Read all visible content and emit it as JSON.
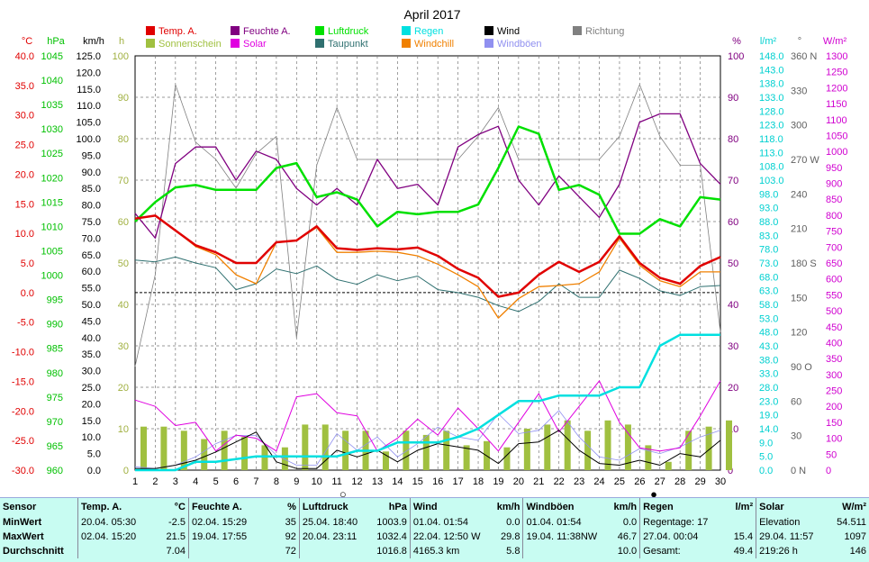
{
  "chart_data": {
    "type": "line",
    "title": "April 2017",
    "x": [
      1,
      2,
      3,
      4,
      5,
      6,
      7,
      8,
      9,
      10,
      11,
      12,
      13,
      14,
      15,
      16,
      17,
      18,
      19,
      20,
      21,
      22,
      23,
      24,
      25,
      26,
      27,
      28,
      29,
      30
    ],
    "axes": {
      "temp_c": {
        "label": "°C",
        "ylim": [
          -30,
          40
        ],
        "ticks": [
          "40.0",
          "35.0",
          "30.0",
          "25.0",
          "20.0",
          "15.0",
          "10.0",
          "5.0",
          "0.0",
          "-5.0",
          "-10.0",
          "-15.0",
          "-20.0",
          "-25.0",
          "-30.0"
        ]
      },
      "pressure_hpa": {
        "label": "hPa",
        "ylim": [
          960,
          1045
        ],
        "ticks": [
          "1045",
          "1040",
          "1035",
          "1030",
          "1025",
          "1020",
          "1015",
          "1010",
          "1005",
          "1000",
          "995",
          "990",
          "985",
          "980",
          "975",
          "970",
          "965",
          "960"
        ]
      },
      "wind_kmh": {
        "label": "km/h",
        "ylim": [
          0,
          125
        ],
        "ticks": [
          "125.0",
          "120.0",
          "115.0",
          "110.0",
          "105.0",
          "100.0",
          "95.0",
          "90.0",
          "85.0",
          "80.0",
          "75.0",
          "70.0",
          "65.0",
          "60.0",
          "55.0",
          "50.0",
          "45.0",
          "40.0",
          "35.0",
          "30.0",
          "25.0",
          "20.0",
          "15.0",
          "10.0",
          "5.0",
          "0.0"
        ]
      },
      "sun_h": {
        "label": "h",
        "ylim": [
          0,
          100
        ],
        "ticks": [
          "100",
          "90",
          "80",
          "70",
          "60",
          "50",
          "40",
          "30",
          "20",
          "10",
          "0"
        ]
      },
      "humidity_pct": {
        "label": "%",
        "ylim": [
          0,
          100
        ],
        "ticks": [
          "100",
          "90",
          "80",
          "70",
          "60",
          "50",
          "40",
          "30",
          "20",
          "10",
          "0"
        ]
      },
      "rain_lm2": {
        "label": "l/m²",
        "ylim": [
          0,
          150
        ],
        "ticks": [
          "148.0",
          "143.0",
          "138.0",
          "133.0",
          "128.0",
          "123.0",
          "118.0",
          "113.0",
          "108.0",
          "103.0",
          "98.0",
          "93.0",
          "88.0",
          "83.0",
          "78.0",
          "73.0",
          "68.0",
          "63.0",
          "58.0",
          "53.0",
          "48.0",
          "43.0",
          "38.0",
          "33.0",
          "28.0",
          "23.0",
          "19.0",
          "14.0",
          "9.0",
          "5.0",
          "0.0"
        ]
      },
      "direction_deg": {
        "label": "°",
        "ylim": [
          0,
          360
        ],
        "ticks": [
          "360 N",
          "330",
          "300",
          "270 W",
          "240",
          "210",
          "180 S",
          "150",
          "120",
          "90 O",
          "60",
          "30",
          "0 N"
        ]
      },
      "solar_wm2": {
        "label": "W/m²",
        "ylim": [
          0,
          1300
        ],
        "ticks": [
          "1300",
          "1250",
          "1200",
          "1150",
          "1100",
          "1050",
          "1000",
          "950",
          "900",
          "850",
          "800",
          "750",
          "700",
          "650",
          "600",
          "550",
          "500",
          "450",
          "400",
          "350",
          "300",
          "250",
          "200",
          "150",
          "100",
          "50",
          "0"
        ]
      }
    },
    "legend": [
      "Temp. A.",
      "Feuchte A.",
      "Luftdruck",
      "Regen",
      "Wind",
      "Richtung",
      "Sonnenschein",
      "Solar",
      "Taupunkt",
      "Windchill",
      "Windböen"
    ],
    "series": [
      {
        "name": "Temp. A.",
        "axis": "temp_c",
        "color": "#e00000",
        "values": [
          12.5,
          13,
          10.5,
          8,
          6.8,
          5,
          5,
          8.5,
          8.8,
          11.2,
          7.5,
          7.2,
          7.5,
          7.3,
          7.6,
          6.2,
          4,
          2.5,
          -0.7,
          0,
          3,
          5.2,
          3.5,
          5.2,
          9.5,
          5,
          2.5,
          1.5,
          4.5,
          6
        ]
      },
      {
        "name": "Feuchte A.",
        "axis": "humidity_pct",
        "color": "#800080",
        "values": [
          62,
          56,
          74,
          78,
          78,
          70,
          77,
          75,
          68,
          64,
          68,
          64,
          75,
          68,
          69,
          64,
          78,
          81,
          83,
          70,
          64,
          71,
          66,
          61,
          69,
          84,
          86,
          86,
          74,
          69
        ]
      },
      {
        "name": "Luftdruck",
        "axis": "pressure_hpa",
        "color": "#00e000",
        "values": [
          1011,
          1015,
          1018,
          1018.5,
          1017.5,
          1017.5,
          1017.5,
          1022,
          1023,
          1016,
          1017,
          1015.5,
          1010,
          1013,
          1012.5,
          1013,
          1013,
          1014.5,
          1022,
          1030.5,
          1029,
          1017.5,
          1018.5,
          1016.5,
          1008.5,
          1008.5,
          1011.5,
          1010,
          1016,
          1015.5
        ]
      },
      {
        "name": "Taupunkt",
        "axis": "temp_c",
        "color": "#2f7070",
        "values": [
          5.5,
          5.2,
          6,
          5,
          4.2,
          0.5,
          1.5,
          4,
          3.2,
          4.5,
          2.2,
          1.4,
          3,
          2,
          2.8,
          0.5,
          0,
          -0.8,
          -2.2,
          -3.2,
          -1.5,
          1.5,
          -0.8,
          -0.8,
          3.8,
          2.4,
          0.3,
          -0.5,
          1,
          1.2
        ]
      },
      {
        "name": "Windchill",
        "axis": "temp_c",
        "color": "#f08000",
        "values": [
          12.5,
          13,
          10.5,
          7.8,
          6.4,
          3,
          1.5,
          8.5,
          8.8,
          11,
          6.8,
          6.8,
          7,
          6.8,
          6.2,
          4.8,
          3,
          1,
          -4.3,
          -1,
          1,
          1.2,
          1.5,
          3.5,
          9.2,
          4.6,
          2,
          1,
          3.5,
          3.5
        ]
      },
      {
        "name": "Regen",
        "axis": "rain_lm2",
        "color": "#00e0e0",
        "values": [
          0,
          0,
          0,
          3,
          3,
          4,
          5,
          5,
          5,
          5,
          5,
          7,
          7,
          10,
          10,
          10,
          12,
          15,
          20,
          25,
          25,
          27,
          27,
          27,
          30,
          30,
          45,
          49,
          49,
          49
        ]
      },
      {
        "name": "Wind",
        "axis": "wind_kmh",
        "color": "#000000",
        "values": [
          0.5,
          0.5,
          1.5,
          3,
          5.5,
          8.5,
          11.5,
          2.5,
          0.5,
          0.5,
          6,
          4,
          6,
          2.5,
          6,
          8,
          7,
          6,
          2,
          8,
          8.5,
          12,
          6,
          2,
          1.5,
          3,
          1.5,
          5,
          4,
          9
        ]
      },
      {
        "name": "Windböen",
        "axis": "wind_kmh",
        "color": "#9090f0",
        "values": [
          1,
          0.5,
          1.5,
          4,
          8,
          10.5,
          10.5,
          4.5,
          1.5,
          1.5,
          11,
          6,
          10,
          4,
          8,
          13,
          10,
          9,
          17,
          11,
          12,
          18,
          10,
          4,
          3,
          6.5,
          5,
          7,
          10,
          12
        ]
      },
      {
        "name": "Richtung",
        "axis": "direction_deg",
        "color": "#808080",
        "values": [
          90,
          170,
          335,
          285,
          270,
          245,
          275,
          290,
          115,
          265,
          315,
          270,
          270,
          270,
          270,
          270,
          270,
          290,
          315,
          270,
          270,
          270,
          270,
          270,
          290,
          335,
          290,
          265,
          265,
          120
        ]
      },
      {
        "name": "Solar",
        "axis": "solar_wm2",
        "color": "#e000e0",
        "values": [
          220,
          200,
          140,
          150,
          60,
          110,
          100,
          60,
          230,
          240,
          180,
          170,
          60,
          100,
          160,
          110,
          195,
          130,
          60,
          150,
          240,
          120,
          200,
          280,
          150,
          70,
          60,
          70,
          170,
          280
        ]
      },
      {
        "name": "Sonnenschein",
        "axis": "sun_h",
        "color": "#a0c040",
        "type": "bar",
        "values": [
          10.5,
          10.5,
          9.5,
          7.5,
          9.5,
          8,
          6,
          5.5,
          11,
          11,
          9.5,
          9.5,
          4.5,
          9.5,
          8.5,
          9.5,
          6,
          7,
          5.5,
          10,
          11,
          12,
          9.5,
          12,
          11,
          6,
          2,
          9.5,
          10.5,
          12
        ]
      }
    ],
    "markers": [
      {
        "day": 11.3,
        "symbol": "○"
      },
      {
        "day": 26.7,
        "symbol": "●"
      }
    ],
    "reference_line": {
      "axis": "temp_c",
      "value": 0
    }
  },
  "stats": {
    "headers": {
      "sensor": "Sensor",
      "temp": "Temp. A.",
      "temp_unit": "°C",
      "hum": "Feuchte A.",
      "hum_unit": "%",
      "press": "Luftdruck",
      "press_unit": "hPa",
      "wind": "Wind",
      "wind_unit": "km/h",
      "gust": "Windböen",
      "gust_unit": "km/h",
      "rain": "Regen",
      "rain_unit": "l/m²",
      "solar": "Solar",
      "solar_unit": "W/m²"
    },
    "rows": [
      {
        "label": "MinWert",
        "temp_when": "20.04.  05:30",
        "temp_val": "-2.5",
        "hum_when": "02.04.  15:29",
        "hum_val": "35",
        "press_when": "25.04.  18:40",
        "press_val": "1003.9",
        "wind_when": "01.04.  01:54",
        "wind_val": "0.0",
        "gust_when": "01.04.  01:54",
        "gust_val": "0.0",
        "rain_when": "Regentage: 17",
        "rain_val": "",
        "solar_when": "Elevation",
        "solar_val": "54.511"
      },
      {
        "label": "MaxWert",
        "temp_when": "02.04.  15:20",
        "temp_val": "21.5",
        "hum_when": "19.04.  17:55",
        "hum_val": "92",
        "press_when": "20.04.  23:11",
        "press_val": "1032.4",
        "wind_when": "22.04.  12:50 W",
        "wind_val": "29.8",
        "gust_when": "19.04.  11:38NW",
        "gust_val": "46.7",
        "rain_when": "27.04.  00:04",
        "rain_val": "15.4",
        "solar_when": "29.04.  11:57",
        "solar_val": "1097"
      },
      {
        "label": "Durchschnitt",
        "temp_when": "",
        "temp_val": "7.04",
        "hum_when": "",
        "hum_val": "72",
        "press_when": "",
        "press_val": "1016.8",
        "wind_when": "4165.3 km",
        "wind_val": "5.8",
        "gust_when": "",
        "gust_val": "10.0",
        "rain_when": "Gesamt:",
        "rain_val": "49.4",
        "solar_when": "219:26 h",
        "solar_val": "146"
      }
    ]
  }
}
